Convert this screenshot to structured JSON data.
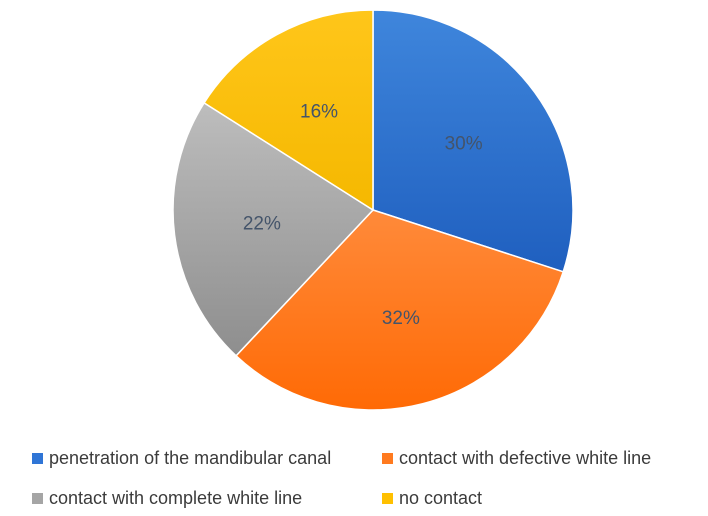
{
  "chart_data": {
    "type": "pie",
    "title": "",
    "slices": [
      {
        "label": "penetration of the mandibular canal",
        "value": 30,
        "value_label": "30%",
        "color": "#2f75d6"
      },
      {
        "label": "contact with defective white line",
        "value": 32,
        "value_label": "32%",
        "color": "#ff7a1f"
      },
      {
        "label": "contact with complete white line",
        "value": 22,
        "value_label": "22%",
        "color": "#a5a5a5"
      },
      {
        "label": "no contact",
        "value": 16,
        "value_label": "16%",
        "color": "#ffc000"
      }
    ],
    "start_angle": "12 o'clock",
    "direction": "clockwise",
    "legend_position": "bottom"
  }
}
